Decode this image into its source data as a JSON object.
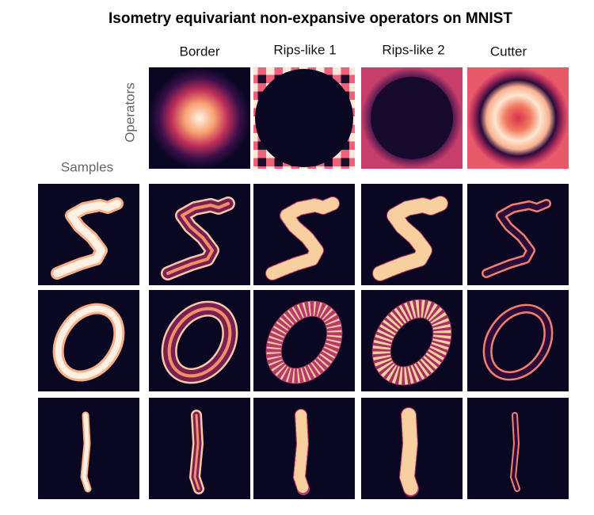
{
  "title": "Isometry equivariant non-expansive operators on MNIST",
  "columns": [
    "Border",
    "Rips-like 1",
    "Rips-like 2",
    "Cutter"
  ],
  "row_labels": {
    "operators": "Operators",
    "samples": "Samples"
  }
}
